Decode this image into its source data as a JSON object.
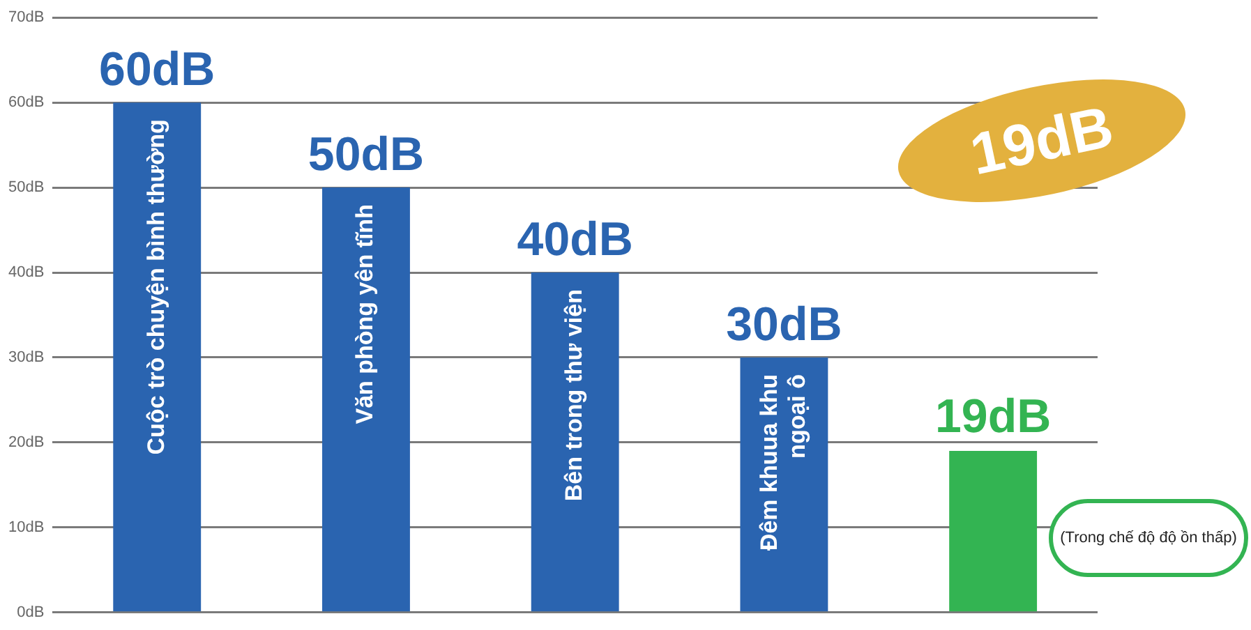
{
  "chart_data": {
    "type": "bar",
    "categories": [
      "Cuộc trò chuyện bình thường",
      "Văn phòng yên tĩnh",
      "Bên trong thư viện",
      "Đêm khuua khu ngoại ô",
      null
    ],
    "values": [
      60,
      50,
      40,
      30,
      19
    ],
    "colors": [
      "#2a64b0",
      "#2a64b0",
      "#2a64b0",
      "#2a64b0",
      "#33b452"
    ],
    "value_labels": [
      "60dB",
      "50dB",
      "40dB",
      "30dB",
      "19dB"
    ],
    "ylim": [
      0,
      70
    ],
    "yticks": [
      {
        "value": 0,
        "label": "0dB"
      },
      {
        "value": 10,
        "label": "10dB"
      },
      {
        "value": 20,
        "label": "20dB"
      },
      {
        "value": 30,
        "label": "30dB"
      },
      {
        "value": 40,
        "label": "40dB"
      },
      {
        "value": 50,
        "label": "50dB"
      },
      {
        "value": 60,
        "label": "60dB"
      },
      {
        "value": 70,
        "label": "70dB"
      }
    ],
    "grid": "y",
    "legend": false,
    "annotations": [
      "19dB",
      "(Trong chế độ độ ồn thấp)"
    ]
  }
}
